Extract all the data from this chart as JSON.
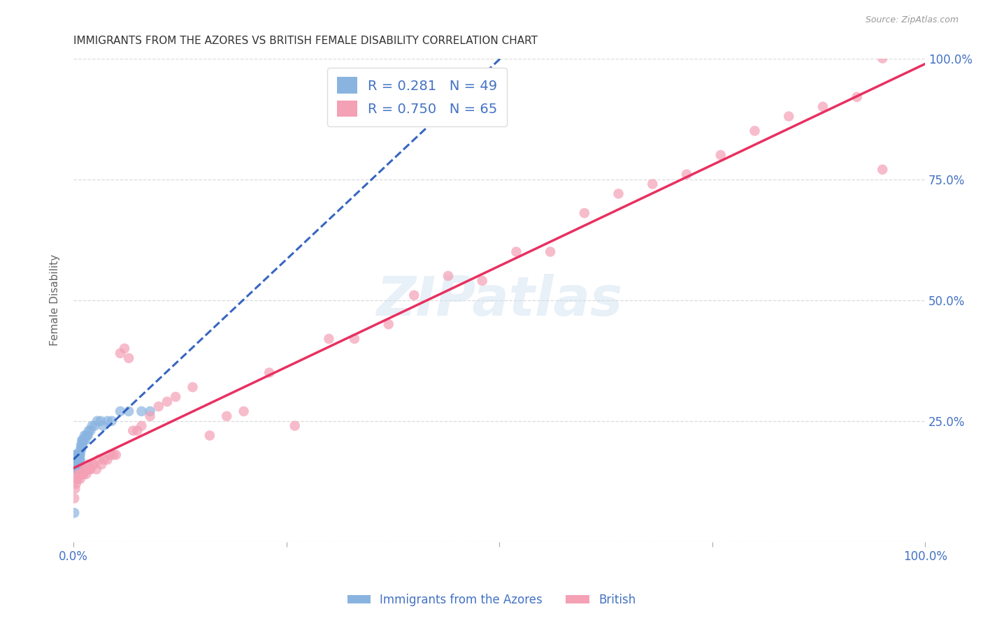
{
  "title": "IMMIGRANTS FROM THE AZORES VS BRITISH FEMALE DISABILITY CORRELATION CHART",
  "source": "Source: ZipAtlas.com",
  "ylabel": "Female Disability",
  "xlim": [
    0,
    1.0
  ],
  "ylim": [
    0,
    1.0
  ],
  "axis_label_color": "#4472c4",
  "background_color": "#ffffff",
  "watermark": "ZIPatlas",
  "blue_R": 0.281,
  "blue_N": 49,
  "pink_R": 0.75,
  "pink_N": 65,
  "blue_label": "Immigrants from the Azores",
  "pink_label": "British",
  "blue_scatter_color": "#8ab4e0",
  "pink_scatter_color": "#f4a0b5",
  "blue_line_color": "#2255bb",
  "pink_line_color": "#e83060",
  "grid_color": "#cccccc",
  "grid_style": "--",
  "grid_alpha": 0.7,
  "blue_x": [
    0.001,
    0.001,
    0.001,
    0.002,
    0.002,
    0.002,
    0.003,
    0.003,
    0.003,
    0.003,
    0.004,
    0.004,
    0.004,
    0.005,
    0.005,
    0.005,
    0.006,
    0.006,
    0.006,
    0.007,
    0.007,
    0.008,
    0.008,
    0.008,
    0.009,
    0.009,
    0.01,
    0.01,
    0.011,
    0.012,
    0.013,
    0.014,
    0.015,
    0.016,
    0.017,
    0.018,
    0.02,
    0.022,
    0.025,
    0.028,
    0.032,
    0.035,
    0.04,
    0.045,
    0.055,
    0.065,
    0.08,
    0.09,
    0.001
  ],
  "blue_y": [
    0.17,
    0.16,
    0.15,
    0.17,
    0.16,
    0.18,
    0.18,
    0.17,
    0.16,
    0.15,
    0.17,
    0.16,
    0.18,
    0.17,
    0.16,
    0.15,
    0.18,
    0.17,
    0.16,
    0.18,
    0.17,
    0.19,
    0.18,
    0.17,
    0.19,
    0.2,
    0.21,
    0.2,
    0.21,
    0.21,
    0.22,
    0.21,
    0.22,
    0.22,
    0.22,
    0.23,
    0.23,
    0.24,
    0.24,
    0.25,
    0.25,
    0.24,
    0.25,
    0.25,
    0.27,
    0.27,
    0.27,
    0.27,
    0.06
  ],
  "pink_x": [
    0.001,
    0.002,
    0.003,
    0.004,
    0.005,
    0.006,
    0.007,
    0.008,
    0.009,
    0.01,
    0.011,
    0.012,
    0.013,
    0.014,
    0.015,
    0.016,
    0.017,
    0.018,
    0.019,
    0.02,
    0.022,
    0.024,
    0.027,
    0.03,
    0.033,
    0.036,
    0.04,
    0.043,
    0.047,
    0.05,
    0.055,
    0.06,
    0.065,
    0.07,
    0.075,
    0.08,
    0.09,
    0.1,
    0.11,
    0.12,
    0.14,
    0.16,
    0.18,
    0.2,
    0.23,
    0.26,
    0.3,
    0.33,
    0.37,
    0.4,
    0.44,
    0.48,
    0.52,
    0.56,
    0.6,
    0.64,
    0.68,
    0.72,
    0.76,
    0.8,
    0.84,
    0.88,
    0.92,
    0.95,
    0.95
  ],
  "pink_y": [
    0.09,
    0.11,
    0.12,
    0.13,
    0.13,
    0.14,
    0.14,
    0.13,
    0.14,
    0.14,
    0.14,
    0.14,
    0.15,
    0.15,
    0.14,
    0.15,
    0.15,
    0.16,
    0.15,
    0.15,
    0.16,
    0.16,
    0.15,
    0.17,
    0.16,
    0.17,
    0.17,
    0.18,
    0.18,
    0.18,
    0.39,
    0.4,
    0.38,
    0.23,
    0.23,
    0.24,
    0.26,
    0.28,
    0.29,
    0.3,
    0.32,
    0.22,
    0.26,
    0.27,
    0.35,
    0.24,
    0.42,
    0.42,
    0.45,
    0.51,
    0.55,
    0.54,
    0.6,
    0.6,
    0.68,
    0.72,
    0.74,
    0.76,
    0.8,
    0.85,
    0.88,
    0.9,
    0.92,
    1.0,
    0.77
  ]
}
